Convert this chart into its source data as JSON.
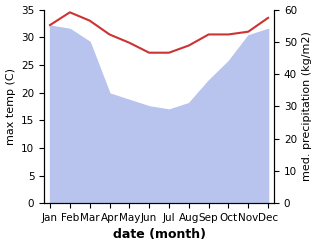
{
  "months": [
    "Jan",
    "Feb",
    "Mar",
    "Apr",
    "May",
    "Jun",
    "Jul",
    "Aug",
    "Sep",
    "Oct",
    "Nov",
    "Dec"
  ],
  "month_indices": [
    0,
    1,
    2,
    3,
    4,
    5,
    6,
    7,
    8,
    9,
    10,
    11
  ],
  "max_temp": [
    32.2,
    34.5,
    33.0,
    30.5,
    29.0,
    27.2,
    27.2,
    28.5,
    30.5,
    30.5,
    31.0,
    33.5
  ],
  "precipitation": [
    55,
    54,
    50,
    34,
    32,
    30,
    29,
    31,
    38,
    44,
    52,
    54
  ],
  "fill_color": "#b8c4ee",
  "precip_line_color": "#cc3333",
  "temp_ylim": [
    0,
    35
  ],
  "precip_ylim": [
    0,
    60
  ],
  "xlabel": "date (month)",
  "ylabel_left": "max temp (C)",
  "ylabel_right": "med. precipitation (kg/m2)",
  "background_color": "#ffffff",
  "ylabel_left_fontsize": 8,
  "ylabel_right_fontsize": 8,
  "xlabel_fontsize": 9,
  "tick_fontsize": 7.5,
  "line_width": 1.5
}
